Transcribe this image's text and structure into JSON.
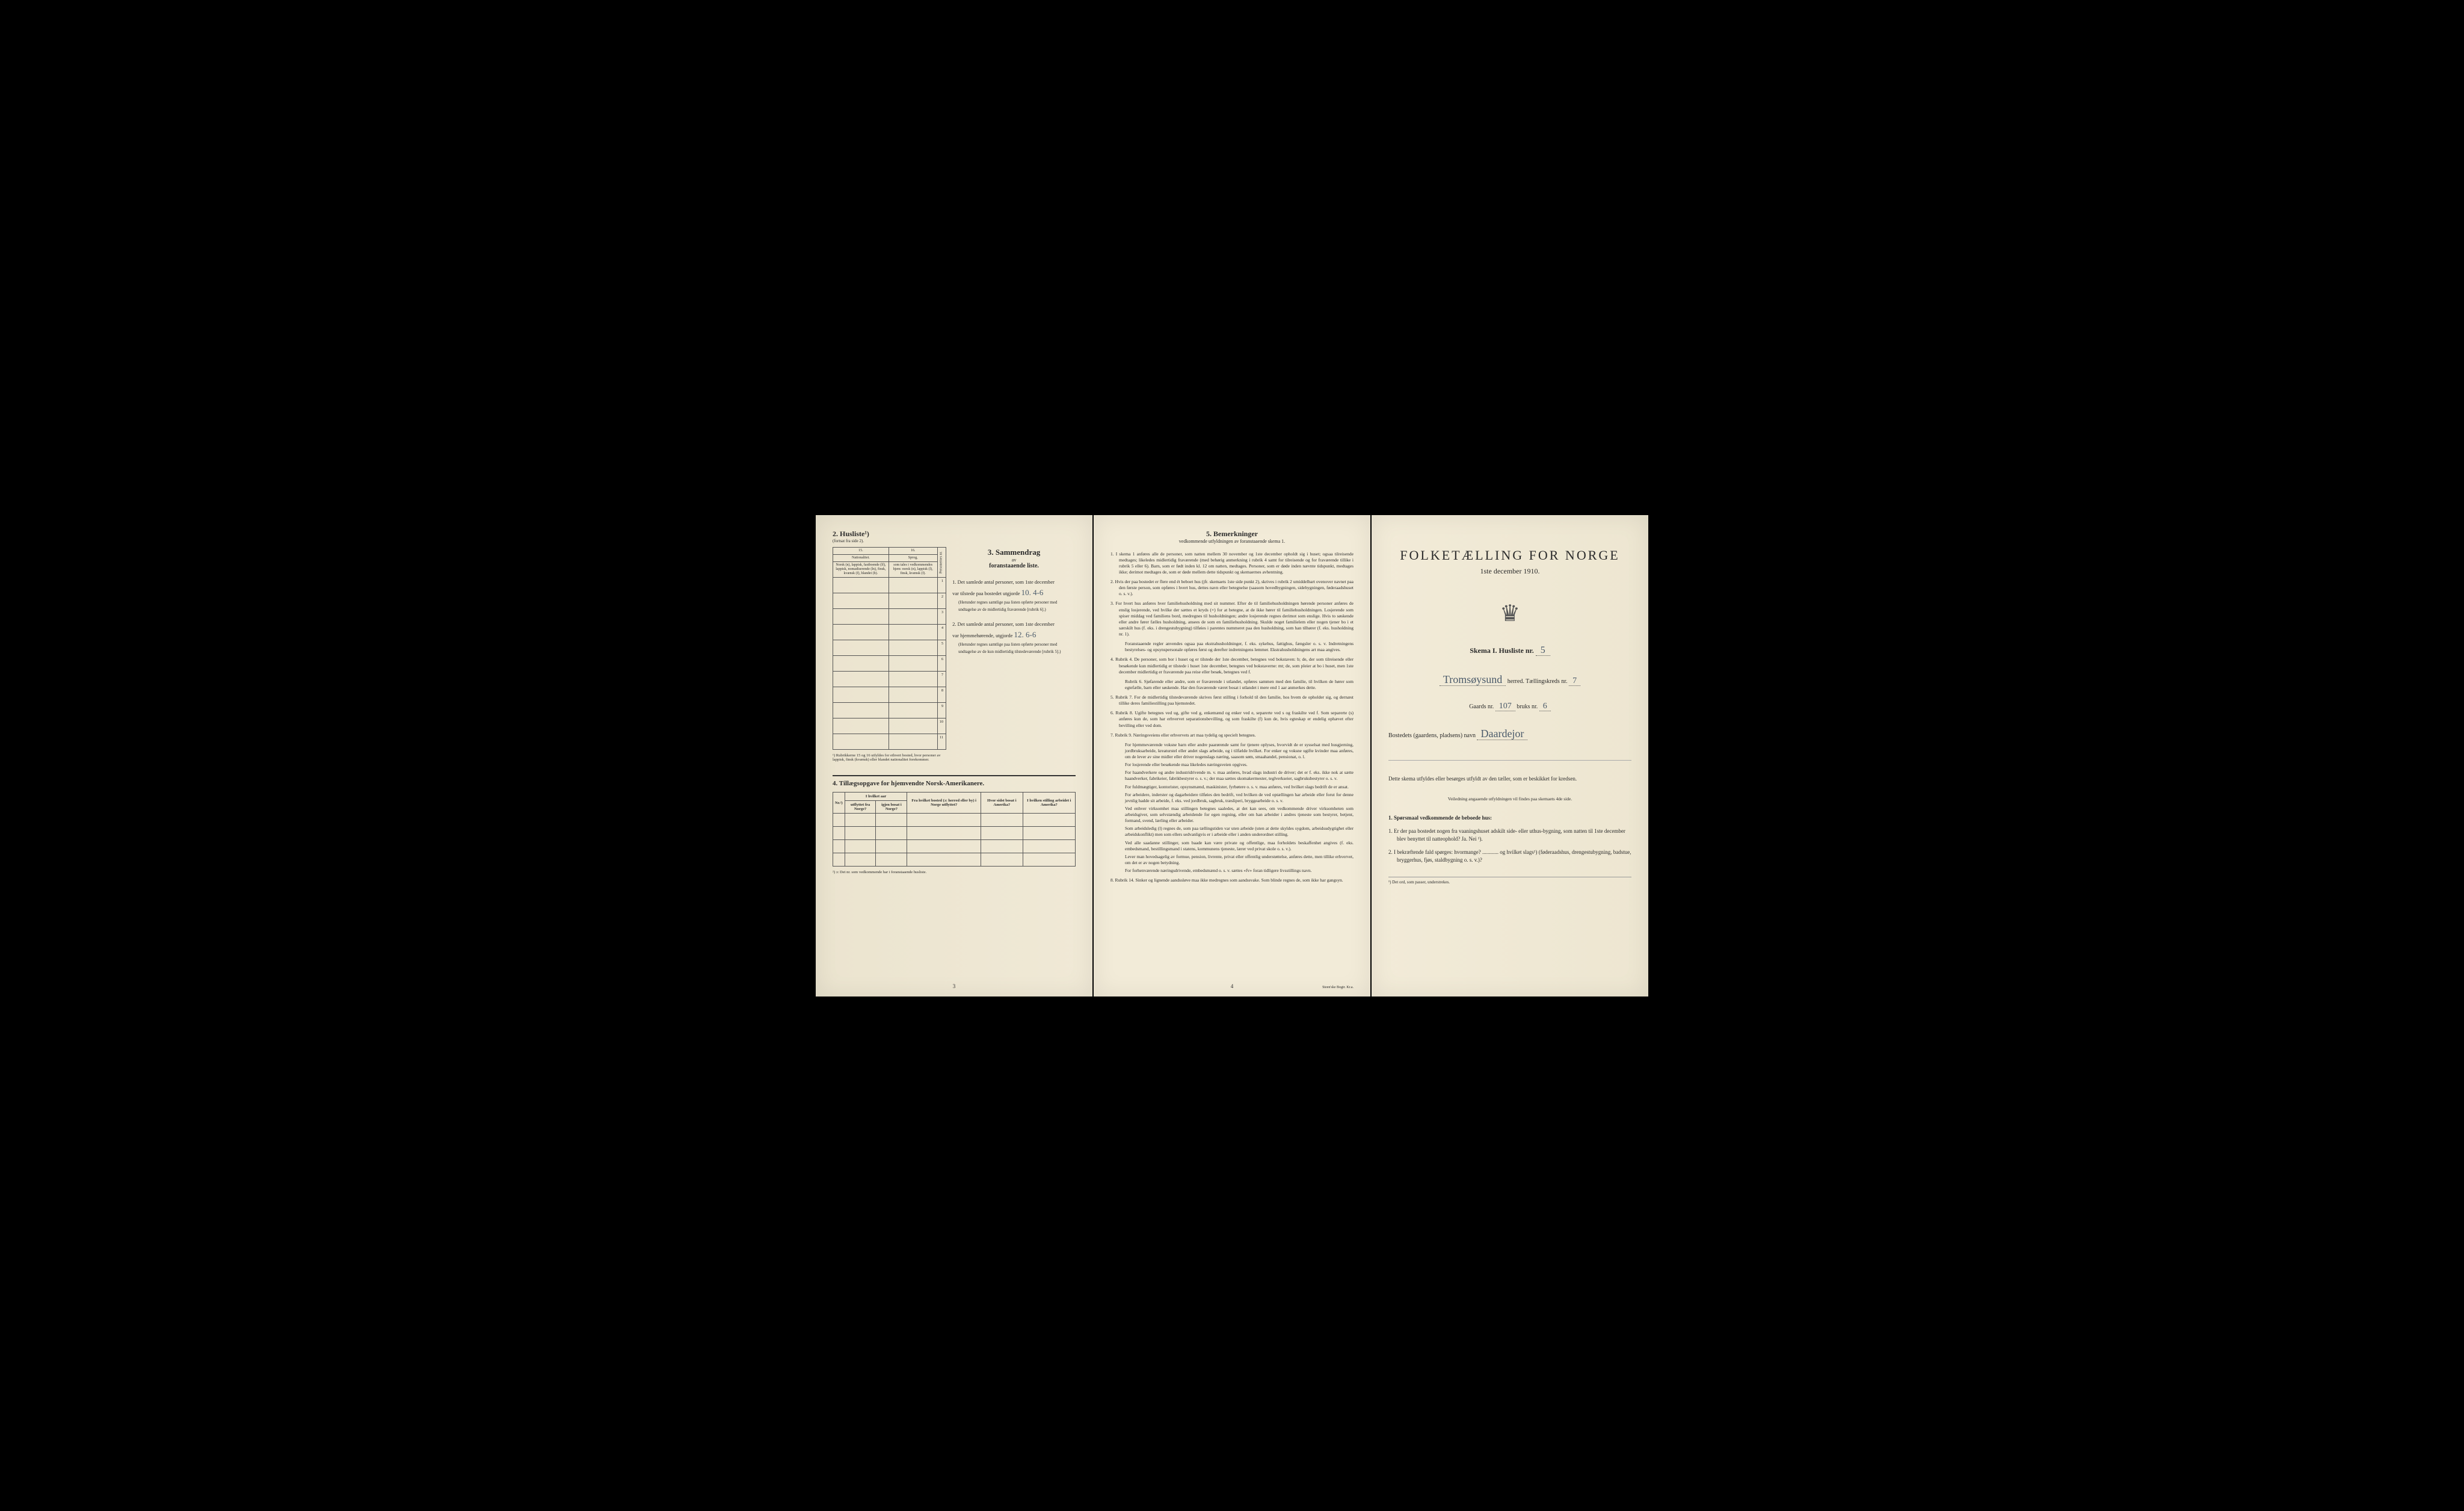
{
  "pageLeft": {
    "sec2": {
      "title": "2.  Husliste¹)",
      "subtitle": "(fortsat fra side 2).",
      "cols": {
        "c15": "15.",
        "c16": "16.",
        "c15h": "Nationalitet.",
        "c15t": "Norsk (n), lappisk, fastboende (lf), lappisk, nomadiserende (ln), finsk, kvænsk (f), blandet (b).",
        "c16h": "Sprog,",
        "c16t": "som tales i vedkommendes hjem: norsk (n), lappisk (l), finsk, kvænsk (f).",
        "cP": "Personernes nr."
      },
      "rows": [
        "1",
        "2",
        "3",
        "4",
        "5",
        "6",
        "7",
        "8",
        "9",
        "10",
        "11"
      ],
      "footnote": "¹) Rubrikkerne 15 og 16 utfyldes for ethvert bosted, hvor personer av lappisk, finsk (kvænsk) eller blandet nationalitet forekommer."
    },
    "sec3": {
      "title": "3.  Sammendrag",
      "sub1": "av",
      "sub2": "foranstaaende liste.",
      "item1a": "1.  Det samlede antal personer, som 1ste december",
      "item1b": "var tilstede paa bostedet utgjorde",
      "hw1": "10.  4-6",
      "item1c": "(Herunder regnes samtlige paa listen opførte personer med undtagelse av de midlertidig fraværende [rubrik 6].)",
      "item2a": "2.  Det samlede antal personer, som 1ste december",
      "item2b": "var hjemmehørende, utgjorde",
      "hw2": "12.  6-6",
      "item2c": "(Herunder regnes samtlige paa listen opførte personer med undtagelse av de kun midlertidig tilstedeværende [rubrik 5].)"
    },
    "sec4": {
      "title": "4.  Tillægsopgave for hjemvendte Norsk-Amerikanere.",
      "h_nr": "Nr.²)",
      "h_aar": "I hvilket aar",
      "h_ut": "utflyttet fra Norge?",
      "h_igj": "igjen bosat i Norge?",
      "h_fra": "Fra hvilket bosted (ɔ: herred eller by) i Norge utflyttet?",
      "h_sidst": "Hvor sidst bosat i Amerika?",
      "h_still": "I hvilken stilling arbeidet i Amerika?",
      "footnote": "²) ɔ: Det nr. som vedkommende har i foranstaaende husliste."
    },
    "pgnum": "3"
  },
  "pageMid": {
    "title": "5.  Bemerkninger",
    "subtitle": "vedkommende utfyldningen av foranstaaende skema 1.",
    "rules": [
      "1.  I skema 1 anføres alle de personer, som natten mellem 30 november og 1ste december opholdt sig i huset; ogsaa tilreisende medtages; likeledes midlertidig fraværende (med behørig anmerkning i rubrik 4 samt for tilreisende og for fraværende tillike i rubrik 5 eller 6). Barn, som er født inden kl. 12 om natten, medtages. Personer, som er døde inden nævnte tidspunkt, medtages ikke; derimot medtages de, som er døde mellem dette tidspunkt og skemaernes avhentning.",
      "2.  Hvis der paa bostedet er flere end ét beboet hus (jfr. skemaets 1ste side punkt 2), skrives i rubrik 2 umiddelbart ovenover navnet paa den første person, som opføres i hvert hus, dettes navn eller betegnelse (saasom hovedbygningen, sidebygningen, føderaadshuset o. s. v.).",
      "3.  For hvert hus anføres hver familiehusholdning med sit nummer. Efter de til familiehusholdningen hørende personer anføres de enslig losjerende, ved hvilke der sættes et kryds (×) for at betegne, at de ikke hører til familiehusholdningen. Losjerende som spiser middag ved familiens bord, medregnes til husholdningen; andre losjerende regnes derimot som enslige. Hvis to søskende eller andre fører fælles husholdning, ansees de som en familiehusholdning. Skulde noget familielem eller nogen tjener bo i et særskilt hus (f. eks. i drengestubygning) tilføies i parentes nummeret paa den husholdning, som han tilhører (f. eks. husholdning nr. 1).",
      "4.  Rubrik 4. De personer, som bor i huset og er tilstede der 1ste december, betegnes ved bokstaven: b; de, der som tilreisende eller besøkende kun midlertidig er tilstede i huset 1ste december, betegnes ved bokstaverne: mt; de, som pleier at bo i huset, men 1ste december midlertidig er fraværende paa reise eller besøk, betegnes ved f.",
      "5.  Rubrik 7. For de midlertidig tilstedeværende skrives først stilling i forhold til den familie, hos hvem de opholder sig, og dernæst tillike deres familiestilling paa hjemstedet.",
      "6.  Rubrik 8. Ugifte betegnes ved ug, gifte ved g, enkemænd og enker ved e, separerte ved s og fraskilte ved f. Som separerte (s) anføres kun de, som har erhvervet separationsbevilling, og som fraskilte (f) kun de, hvis egteskap er endelig ophævet efter bevilling eller ved dom.",
      "7.  Rubrik 9. Næringsveiens eller erhvervets art maa tydelig og specielt betegnes.",
      "8.  Rubrik 14. Sinker og lignende aandssløve maa ikke medregnes som aandssvake. Som blinde regnes de, som ikke har gangsyn."
    ],
    "subs": [
      "Foranstaaende regler anvendes ogsaa paa ekstrahusholdninger, f. eks. sykehus, fattighus, fængsler o. s. v. Indretningens bestyrelses- og opsynspersonale opføres først og derefter indretningens lemmer. Ekstrahusholdningens art maa angives.",
      "Rubrik 6. Sjøfarende eller andre, som er fraværende i utlandet, opføres sammen med den familie, til hvilken de hører som egtefælle, barn eller søskende. Har den fraværende været bosat i utlandet i mere end 1 aar anmerkes dette.",
      "For hjemmeværende voksne barn eller andre paarørende samt for tjenere oplyses, hvorvidt de er sysselsat med husgjerning, jordbruksarbeide, kreaturstel eller andet slags arbeide, og i tilfælde hvilket. For enker og voksne ugifte kvinder maa anføres, om de lever av sine midler eller driver nogenslags næring, saasom søm, smaahandel, pensionat, o. l.",
      "For losjerende eller besøkende maa likeledes næringsveien opgives.",
      "For haandverkere og andre industridrivende m. v. maa anføres, hvad slags industri de driver; det er f. eks. ikke nok at sætte haandverker, fabrikeier, fabrikbestyrer o. s. v.; der maa sættes skomakermester, teglverkseier, sagbruksbestyrer o. s. v.",
      "For fuldmægtiger, kontorister, opsynsmænd, maskinister, fyrbøtere o. s. v. maa anføres, ved hvilket slags bedrift de er ansat.",
      "For arbeidere, inderster og dagarbeidere tilføies den bedrift, ved hvilken de ved optællingen har arbeide eller forut for denne jevnlig hadde sit arbeide, f. eks. ved jordbruk, sagbruk, træsliperi, bryggearbeide o. s. v.",
      "Ved enhver virksomhet maa stillingen betegnes saaledes, at det kan sees, om vedkommende driver virksomheten som arbeidsgiver, som selvstændig arbeidende for egen regning, eller om han arbeider i andres tjeneste som bestyrer, betjent, formand, svend, lærling eller arbeider.",
      "Som arbeidsledig (l) regnes de, som paa tællingstiden var uten arbeide (uten at dette skyldes sygdom, arbeidsudygtighet eller arbeidskonflikt) men som ellers sedvanligvis er i arbeide eller i anden underordnet stilling.",
      "Ved alle saadanne stillinger, som baade kan være private og offentlige, maa forholdets beskaffenhet angives (f. eks. embedsmand, bestillingsmand i statens, kommunens tjeneste, lærer ved privat skole o. s. v.).",
      "Lever man hovedsagelig av formue, pension, livrente, privat eller offentlig understøttelse, anføres dette, men tillike erhvervet, om det er av nogen betydning.",
      "For forhenværende næringsdrivende, embedsmænd o. s. v. sættes «fv» foran tidligere livsstillings navn."
    ],
    "pgnum": "4",
    "printer": "Steen'ske Bogtr.  Kr.a."
  },
  "pageRight": {
    "title": "FOLKETÆLLING FOR NORGE",
    "date": "1ste december 1910.",
    "skemaLabel": "Skema I.  Husliste nr.",
    "skemaNr": "5",
    "herredLabel": "herred.  Tællingskreds nr.",
    "herredHw": "Tromsøysund",
    "kredsNr": "7",
    "gaardLabel": "Gaards nr.",
    "gaardNr": "107",
    "bruksLabel": "bruks nr.",
    "bruksNr": "6",
    "bostedLabel": "Bostedets (gaardens, pladsens) navn",
    "bostedHw": "Daardejor",
    "intro": "Dette skema utfyldes eller besørges utfyldt av den tæller, som er beskikket for kredsen.",
    "introSub": "Veiledning angaaende utfyldningen vil findes paa skemaets 4de side.",
    "q1h": "1.  Spørsmaal vedkommende de beboede hus:",
    "q1a": "1.  Er der paa bostedet nogen fra vaaningshuset adskilt side- eller uthus-bygning, som natten til 1ste december blev benyttet til natteophold?   Ja.   Nei ¹).",
    "q1b": "2.  I bekræftende fald spørges: hvormange? ............ og hvilket slags¹) (føderaadshus, drengestubygning, badstue, bryggerhus, fjøs, staldbygning o. s. v.)?",
    "foot": "¹) Det ord, som passer, understrekes."
  }
}
